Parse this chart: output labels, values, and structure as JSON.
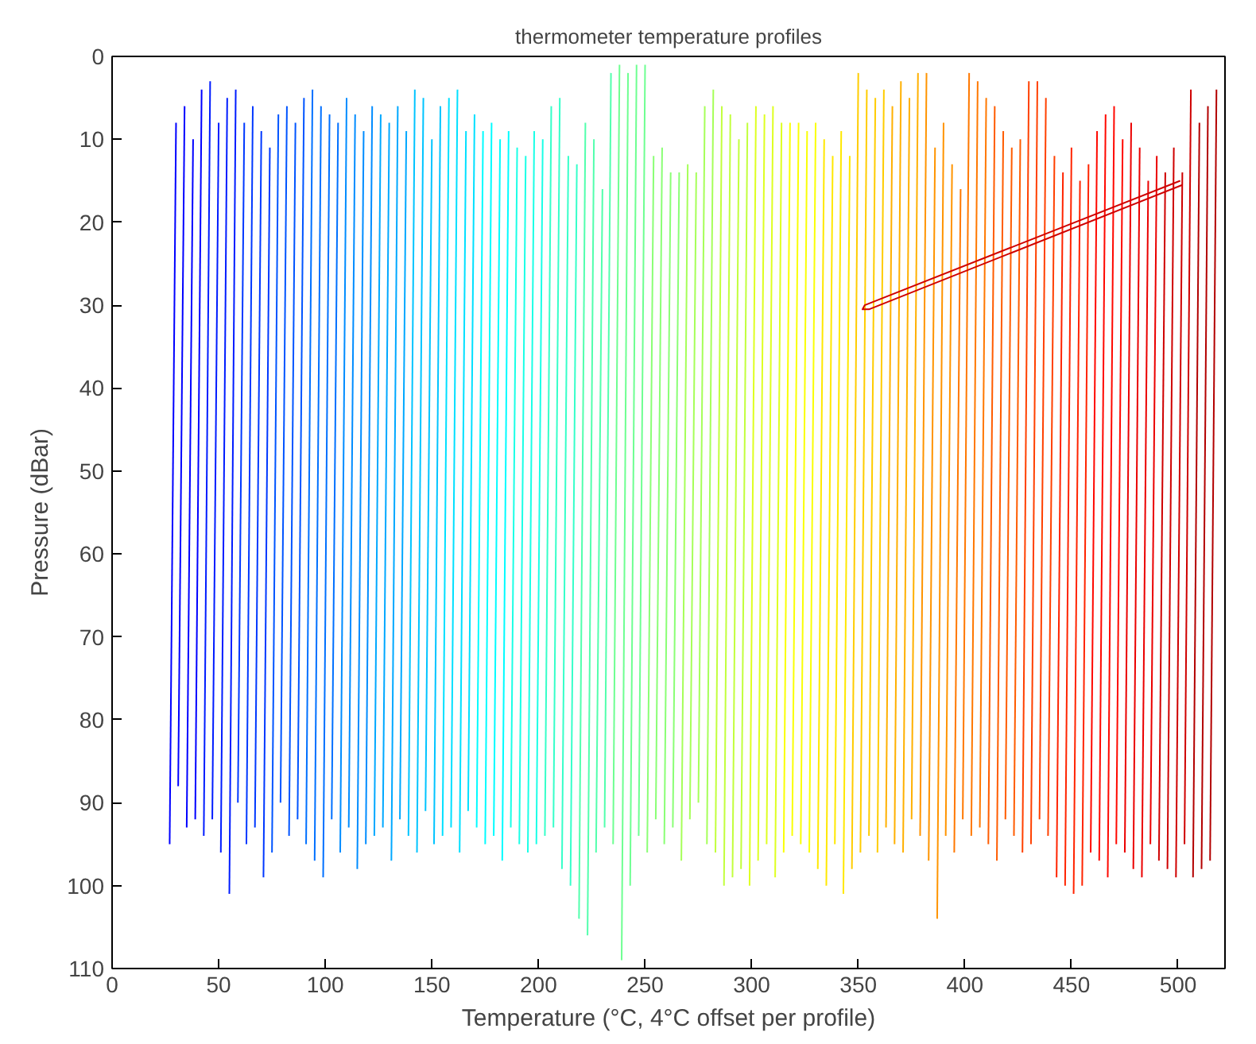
{
  "chart_data": {
    "type": "line",
    "title": "thermometer temperature profiles",
    "xlabel": "Temperature (°C, 4°C offset per profile)",
    "ylabel": "Pressure (dBar)",
    "xlim": [
      0,
      522
    ],
    "ylim": [
      110,
      0
    ],
    "xticks": [
      0,
      50,
      100,
      150,
      200,
      250,
      300,
      350,
      400,
      450,
      500
    ],
    "yticks": [
      0,
      10,
      20,
      30,
      40,
      50,
      60,
      70,
      80,
      90,
      100,
      110
    ],
    "grid": false,
    "line_style": "solid",
    "marker": "none",
    "series": [
      {
        "color": "#0000ff",
        "x": [
          30,
          27
        ],
        "values": [
          8,
          95
        ]
      },
      {
        "color": "#0000ff",
        "x": [
          34,
          31
        ],
        "values": [
          6,
          88
        ]
      },
      {
        "color": "#0000ff",
        "x": [
          38,
          35
        ],
        "values": [
          10,
          93
        ]
      },
      {
        "color": "#0000ff",
        "x": [
          42,
          39
        ],
        "values": [
          4,
          92
        ]
      },
      {
        "color": "#001cff",
        "x": [
          46,
          43
        ],
        "values": [
          3,
          94
        ]
      },
      {
        "color": "#001cff",
        "x": [
          50,
          47
        ],
        "values": [
          8,
          92
        ]
      },
      {
        "color": "#001cff",
        "x": [
          54,
          51
        ],
        "values": [
          5,
          96
        ]
      },
      {
        "color": "#001cff",
        "x": [
          58,
          55
        ],
        "values": [
          4,
          101
        ]
      },
      {
        "color": "#0038ff",
        "x": [
          62,
          59
        ],
        "values": [
          8,
          90
        ]
      },
      {
        "color": "#0038ff",
        "x": [
          66,
          63
        ],
        "values": [
          6,
          95
        ]
      },
      {
        "color": "#0038ff",
        "x": [
          70,
          67
        ],
        "values": [
          9,
          93
        ]
      },
      {
        "color": "#0038ff",
        "x": [
          74,
          71
        ],
        "values": [
          11,
          99
        ]
      },
      {
        "color": "#0054ff",
        "x": [
          78,
          75
        ],
        "values": [
          7,
          96
        ]
      },
      {
        "color": "#0054ff",
        "x": [
          82,
          79
        ],
        "values": [
          6,
          90
        ]
      },
      {
        "color": "#0054ff",
        "x": [
          86,
          83
        ],
        "values": [
          8,
          94
        ]
      },
      {
        "color": "#0054ff",
        "x": [
          90,
          87
        ],
        "values": [
          5,
          92
        ]
      },
      {
        "color": "#0070ff",
        "x": [
          94,
          91
        ],
        "values": [
          4,
          95
        ]
      },
      {
        "color": "#0070ff",
        "x": [
          98,
          95
        ],
        "values": [
          6,
          97
        ]
      },
      {
        "color": "#0070ff",
        "x": [
          102,
          99
        ],
        "values": [
          7,
          99
        ]
      },
      {
        "color": "#0070ff",
        "x": [
          106,
          103
        ],
        "values": [
          8,
          92
        ]
      },
      {
        "color": "#008cff",
        "x": [
          110,
          107
        ],
        "values": [
          5,
          96
        ]
      },
      {
        "color": "#008cff",
        "x": [
          114,
          111
        ],
        "values": [
          7,
          93
        ]
      },
      {
        "color": "#008cff",
        "x": [
          118,
          115
        ],
        "values": [
          9,
          98
        ]
      },
      {
        "color": "#008cff",
        "x": [
          122,
          119
        ],
        "values": [
          6,
          95
        ]
      },
      {
        "color": "#00a8ff",
        "x": [
          126,
          123
        ],
        "values": [
          7,
          94
        ]
      },
      {
        "color": "#00a8ff",
        "x": [
          130,
          127
        ],
        "values": [
          8,
          93
        ]
      },
      {
        "color": "#00a8ff",
        "x": [
          134,
          131
        ],
        "values": [
          6,
          97
        ]
      },
      {
        "color": "#00a8ff",
        "x": [
          138,
          135
        ],
        "values": [
          9,
          92
        ]
      },
      {
        "color": "#00c4ff",
        "x": [
          142,
          139
        ],
        "values": [
          4,
          94
        ]
      },
      {
        "color": "#00c4ff",
        "x": [
          146,
          143
        ],
        "values": [
          5,
          96
        ]
      },
      {
        "color": "#00c4ff",
        "x": [
          150,
          147
        ],
        "values": [
          10,
          91
        ]
      },
      {
        "color": "#00c4ff",
        "x": [
          154,
          151
        ],
        "values": [
          6,
          95
        ]
      },
      {
        "color": "#00e0ff",
        "x": [
          158,
          155
        ],
        "values": [
          5,
          94
        ]
      },
      {
        "color": "#00e0ff",
        "x": [
          162,
          159
        ],
        "values": [
          4,
          93
        ]
      },
      {
        "color": "#00e0ff",
        "x": [
          166,
          163
        ],
        "values": [
          9,
          96
        ]
      },
      {
        "color": "#00e0ff",
        "x": [
          170,
          167
        ],
        "values": [
          7,
          91
        ]
      },
      {
        "color": "#00fcff",
        "x": [
          174,
          171
        ],
        "values": [
          9,
          93
        ]
      },
      {
        "color": "#00fcff",
        "x": [
          178,
          175
        ],
        "values": [
          8,
          95
        ]
      },
      {
        "color": "#00fcff",
        "x": [
          182,
          179
        ],
        "values": [
          10,
          94
        ]
      },
      {
        "color": "#00fcff",
        "x": [
          186,
          183
        ],
        "values": [
          9,
          97
        ]
      },
      {
        "color": "#1affe6",
        "x": [
          190,
          187
        ],
        "values": [
          11,
          93
        ]
      },
      {
        "color": "#1affe6",
        "x": [
          194,
          191
        ],
        "values": [
          12,
          95
        ]
      },
      {
        "color": "#1affe6",
        "x": [
          198,
          195
        ],
        "values": [
          9,
          96
        ]
      },
      {
        "color": "#1affe6",
        "x": [
          202,
          199
        ],
        "values": [
          10,
          95
        ]
      },
      {
        "color": "#36ffc9",
        "x": [
          206,
          203
        ],
        "values": [
          6,
          94
        ]
      },
      {
        "color": "#36ffc9",
        "x": [
          210,
          207
        ],
        "values": [
          5,
          93
        ]
      },
      {
        "color": "#36ffc9",
        "x": [
          214,
          211
        ],
        "values": [
          12,
          98
        ]
      },
      {
        "color": "#36ffc9",
        "x": [
          218,
          215
        ],
        "values": [
          13,
          100
        ]
      },
      {
        "color": "#52ffad",
        "x": [
          222,
          219
        ],
        "values": [
          8,
          104
        ]
      },
      {
        "color": "#52ffad",
        "x": [
          226,
          223
        ],
        "values": [
          10,
          106
        ]
      },
      {
        "color": "#52ffad",
        "x": [
          230,
          227
        ],
        "values": [
          16,
          96
        ]
      },
      {
        "color": "#52ffad",
        "x": [
          234,
          231
        ],
        "values": [
          2,
          93
        ]
      },
      {
        "color": "#6eff91",
        "x": [
          238,
          235
        ],
        "values": [
          1,
          95
        ]
      },
      {
        "color": "#6eff91",
        "x": [
          242,
          239
        ],
        "values": [
          2,
          109
        ]
      },
      {
        "color": "#6eff91",
        "x": [
          246,
          243
        ],
        "values": [
          1,
          100
        ]
      },
      {
        "color": "#6eff91",
        "x": [
          250,
          247
        ],
        "values": [
          1,
          94
        ]
      },
      {
        "color": "#8aff75",
        "x": [
          254,
          251
        ],
        "values": [
          12,
          96
        ]
      },
      {
        "color": "#8aff75",
        "x": [
          258,
          255
        ],
        "values": [
          11,
          92
        ]
      },
      {
        "color": "#8aff75",
        "x": [
          262,
          259
        ],
        "values": [
          14,
          95
        ]
      },
      {
        "color": "#8aff75",
        "x": [
          266,
          263
        ],
        "values": [
          14,
          93
        ]
      },
      {
        "color": "#a6ff59",
        "x": [
          270,
          267
        ],
        "values": [
          13,
          97
        ]
      },
      {
        "color": "#a6ff59",
        "x": [
          274,
          271
        ],
        "values": [
          14,
          92
        ]
      },
      {
        "color": "#a6ff59",
        "x": [
          278,
          275
        ],
        "values": [
          6,
          90
        ]
      },
      {
        "color": "#a6ff59",
        "x": [
          282,
          279
        ],
        "values": [
          4,
          95
        ]
      },
      {
        "color": "#c2ff3d",
        "x": [
          286,
          283
        ],
        "values": [
          6,
          96
        ]
      },
      {
        "color": "#c2ff3d",
        "x": [
          290,
          287
        ],
        "values": [
          7,
          100
        ]
      },
      {
        "color": "#c2ff3d",
        "x": [
          294,
          291
        ],
        "values": [
          10,
          99
        ]
      },
      {
        "color": "#c2ff3d",
        "x": [
          298,
          295
        ],
        "values": [
          8,
          98
        ]
      },
      {
        "color": "#deff21",
        "x": [
          302,
          299
        ],
        "values": [
          6,
          100
        ]
      },
      {
        "color": "#deff21",
        "x": [
          306,
          303
        ],
        "values": [
          7,
          97
        ]
      },
      {
        "color": "#deff21",
        "x": [
          310,
          307
        ],
        "values": [
          6,
          95
        ]
      },
      {
        "color": "#deff21",
        "x": [
          314,
          311
        ],
        "values": [
          8,
          99
        ]
      },
      {
        "color": "#faff05",
        "x": [
          318,
          315
        ],
        "values": [
          8,
          96
        ]
      },
      {
        "color": "#faff05",
        "x": [
          322,
          319
        ],
        "values": [
          8,
          94
        ]
      },
      {
        "color": "#faff05",
        "x": [
          326,
          323
        ],
        "values": [
          9,
          95
        ]
      },
      {
        "color": "#faff05",
        "x": [
          330,
          327
        ],
        "values": [
          8,
          96
        ]
      },
      {
        "color": "#ffe800",
        "x": [
          334,
          331
        ],
        "values": [
          10,
          98
        ]
      },
      {
        "color": "#ffe800",
        "x": [
          338,
          335
        ],
        "values": [
          12,
          100
        ]
      },
      {
        "color": "#ffe800",
        "x": [
          342,
          339
        ],
        "values": [
          9,
          95
        ]
      },
      {
        "color": "#ffe800",
        "x": [
          346,
          343
        ],
        "values": [
          12,
          101
        ]
      },
      {
        "color": "#ffcc00",
        "x": [
          350,
          347
        ],
        "values": [
          2,
          98
        ]
      },
      {
        "color": "#ffcc00",
        "x": [
          354,
          351
        ],
        "values": [
          4,
          96
        ]
      },
      {
        "color": "#ffcc00",
        "x": [
          358,
          355
        ],
        "values": [
          5,
          94
        ]
      },
      {
        "color": "#ffcc00",
        "x": [
          362,
          359
        ],
        "values": [
          4,
          96
        ]
      },
      {
        "color": "#ffb000",
        "x": [
          366,
          363
        ],
        "values": [
          6,
          93
        ]
      },
      {
        "color": "#ffb000",
        "x": [
          370,
          367
        ],
        "values": [
          3,
          95
        ]
      },
      {
        "color": "#ffb000",
        "x": [
          374,
          371
        ],
        "values": [
          5,
          96
        ]
      },
      {
        "color": "#ffb000",
        "x": [
          378,
          375
        ],
        "values": [
          2,
          92
        ]
      },
      {
        "color": "#ff9400",
        "x": [
          382,
          379
        ],
        "values": [
          2,
          94
        ]
      },
      {
        "color": "#ff9400",
        "x": [
          386,
          383
        ],
        "values": [
          11,
          97
        ]
      },
      {
        "color": "#ff9400",
        "x": [
          390,
          387
        ],
        "values": [
          8,
          104
        ]
      },
      {
        "color": "#ff9400",
        "x": [
          394,
          391
        ],
        "values": [
          13,
          94
        ]
      },
      {
        "color": "#ff7800",
        "x": [
          398,
          395
        ],
        "values": [
          16,
          96
        ]
      },
      {
        "color": "#ff7800",
        "x": [
          402,
          399
        ],
        "values": [
          2,
          92
        ]
      },
      {
        "color": "#ff7800",
        "x": [
          406,
          403
        ],
        "values": [
          3,
          94
        ]
      },
      {
        "color": "#ff7800",
        "x": [
          410,
          407
        ],
        "values": [
          5,
          93
        ]
      },
      {
        "color": "#ff5c00",
        "x": [
          414,
          411
        ],
        "values": [
          6,
          95
        ]
      },
      {
        "color": "#ff5c00",
        "x": [
          418,
          415
        ],
        "values": [
          9,
          97
        ]
      },
      {
        "color": "#ff5c00",
        "x": [
          422,
          419
        ],
        "values": [
          11,
          92
        ]
      },
      {
        "color": "#ff5c00",
        "x": [
          426,
          423
        ],
        "values": [
          10,
          94
        ]
      },
      {
        "color": "#ff4000",
        "x": [
          430,
          427
        ],
        "values": [
          3,
          96
        ]
      },
      {
        "color": "#ff4000",
        "x": [
          434,
          431
        ],
        "values": [
          3,
          95
        ]
      },
      {
        "color": "#ff4000",
        "x": [
          438,
          435
        ],
        "values": [
          5,
          92
        ]
      },
      {
        "color": "#ff4000",
        "x": [
          442,
          439
        ],
        "values": [
          12,
          94
        ]
      },
      {
        "color": "#ff2400",
        "x": [
          446,
          443
        ],
        "values": [
          14,
          99
        ]
      },
      {
        "color": "#ff2400",
        "x": [
          450,
          447
        ],
        "values": [
          11,
          100
        ]
      },
      {
        "color": "#ff2400",
        "x": [
          454,
          451
        ],
        "values": [
          15,
          101
        ]
      },
      {
        "color": "#ff2400",
        "x": [
          458,
          455
        ],
        "values": [
          13,
          100
        ]
      },
      {
        "color": "#ff0800",
        "x": [
          462,
          459
        ],
        "values": [
          9,
          96
        ]
      },
      {
        "color": "#ff0800",
        "x": [
          466,
          463
        ],
        "values": [
          7,
          97
        ]
      },
      {
        "color": "#ff0800",
        "x": [
          470,
          467
        ],
        "values": [
          6,
          99
        ]
      },
      {
        "color": "#ff0800",
        "x": [
          474,
          471
        ],
        "values": [
          10,
          95
        ]
      },
      {
        "color": "#eb0000",
        "x": [
          478,
          475
        ],
        "values": [
          8,
          96
        ]
      },
      {
        "color": "#eb0000",
        "x": [
          482,
          479
        ],
        "values": [
          11,
          98
        ]
      },
      {
        "color": "#eb0000",
        "x": [
          486,
          483
        ],
        "values": [
          15,
          99
        ]
      },
      {
        "color": "#eb0000",
        "x": [
          490,
          487
        ],
        "values": [
          12,
          95
        ]
      },
      {
        "color": "#cf0000",
        "x": [
          494,
          491
        ],
        "values": [
          14,
          97
        ]
      },
      {
        "color": "#cf0000",
        "x": [
          498,
          495
        ],
        "values": [
          11,
          98
        ]
      },
      {
        "color": "#cf0000",
        "x": [
          502,
          499
        ],
        "values": [
          14,
          99
        ]
      },
      {
        "color": "#cf0000",
        "x": [
          506,
          503
        ],
        "values": [
          4,
          95
        ]
      },
      {
        "color": "#b30000",
        "x": [
          510,
          507
        ],
        "values": [
          8,
          99
        ]
      },
      {
        "color": "#b30000",
        "x": [
          514,
          511
        ],
        "values": [
          6,
          98
        ]
      },
      {
        "color": "#b30000",
        "x": [
          518,
          515
        ],
        "values": [
          4,
          97
        ]
      },
      {
        "color": "#cf0000",
        "x": [
          501,
          353,
          352,
          355,
          502
        ],
        "values": [
          15,
          30,
          30.5,
          30.5,
          15.5
        ]
      }
    ]
  }
}
